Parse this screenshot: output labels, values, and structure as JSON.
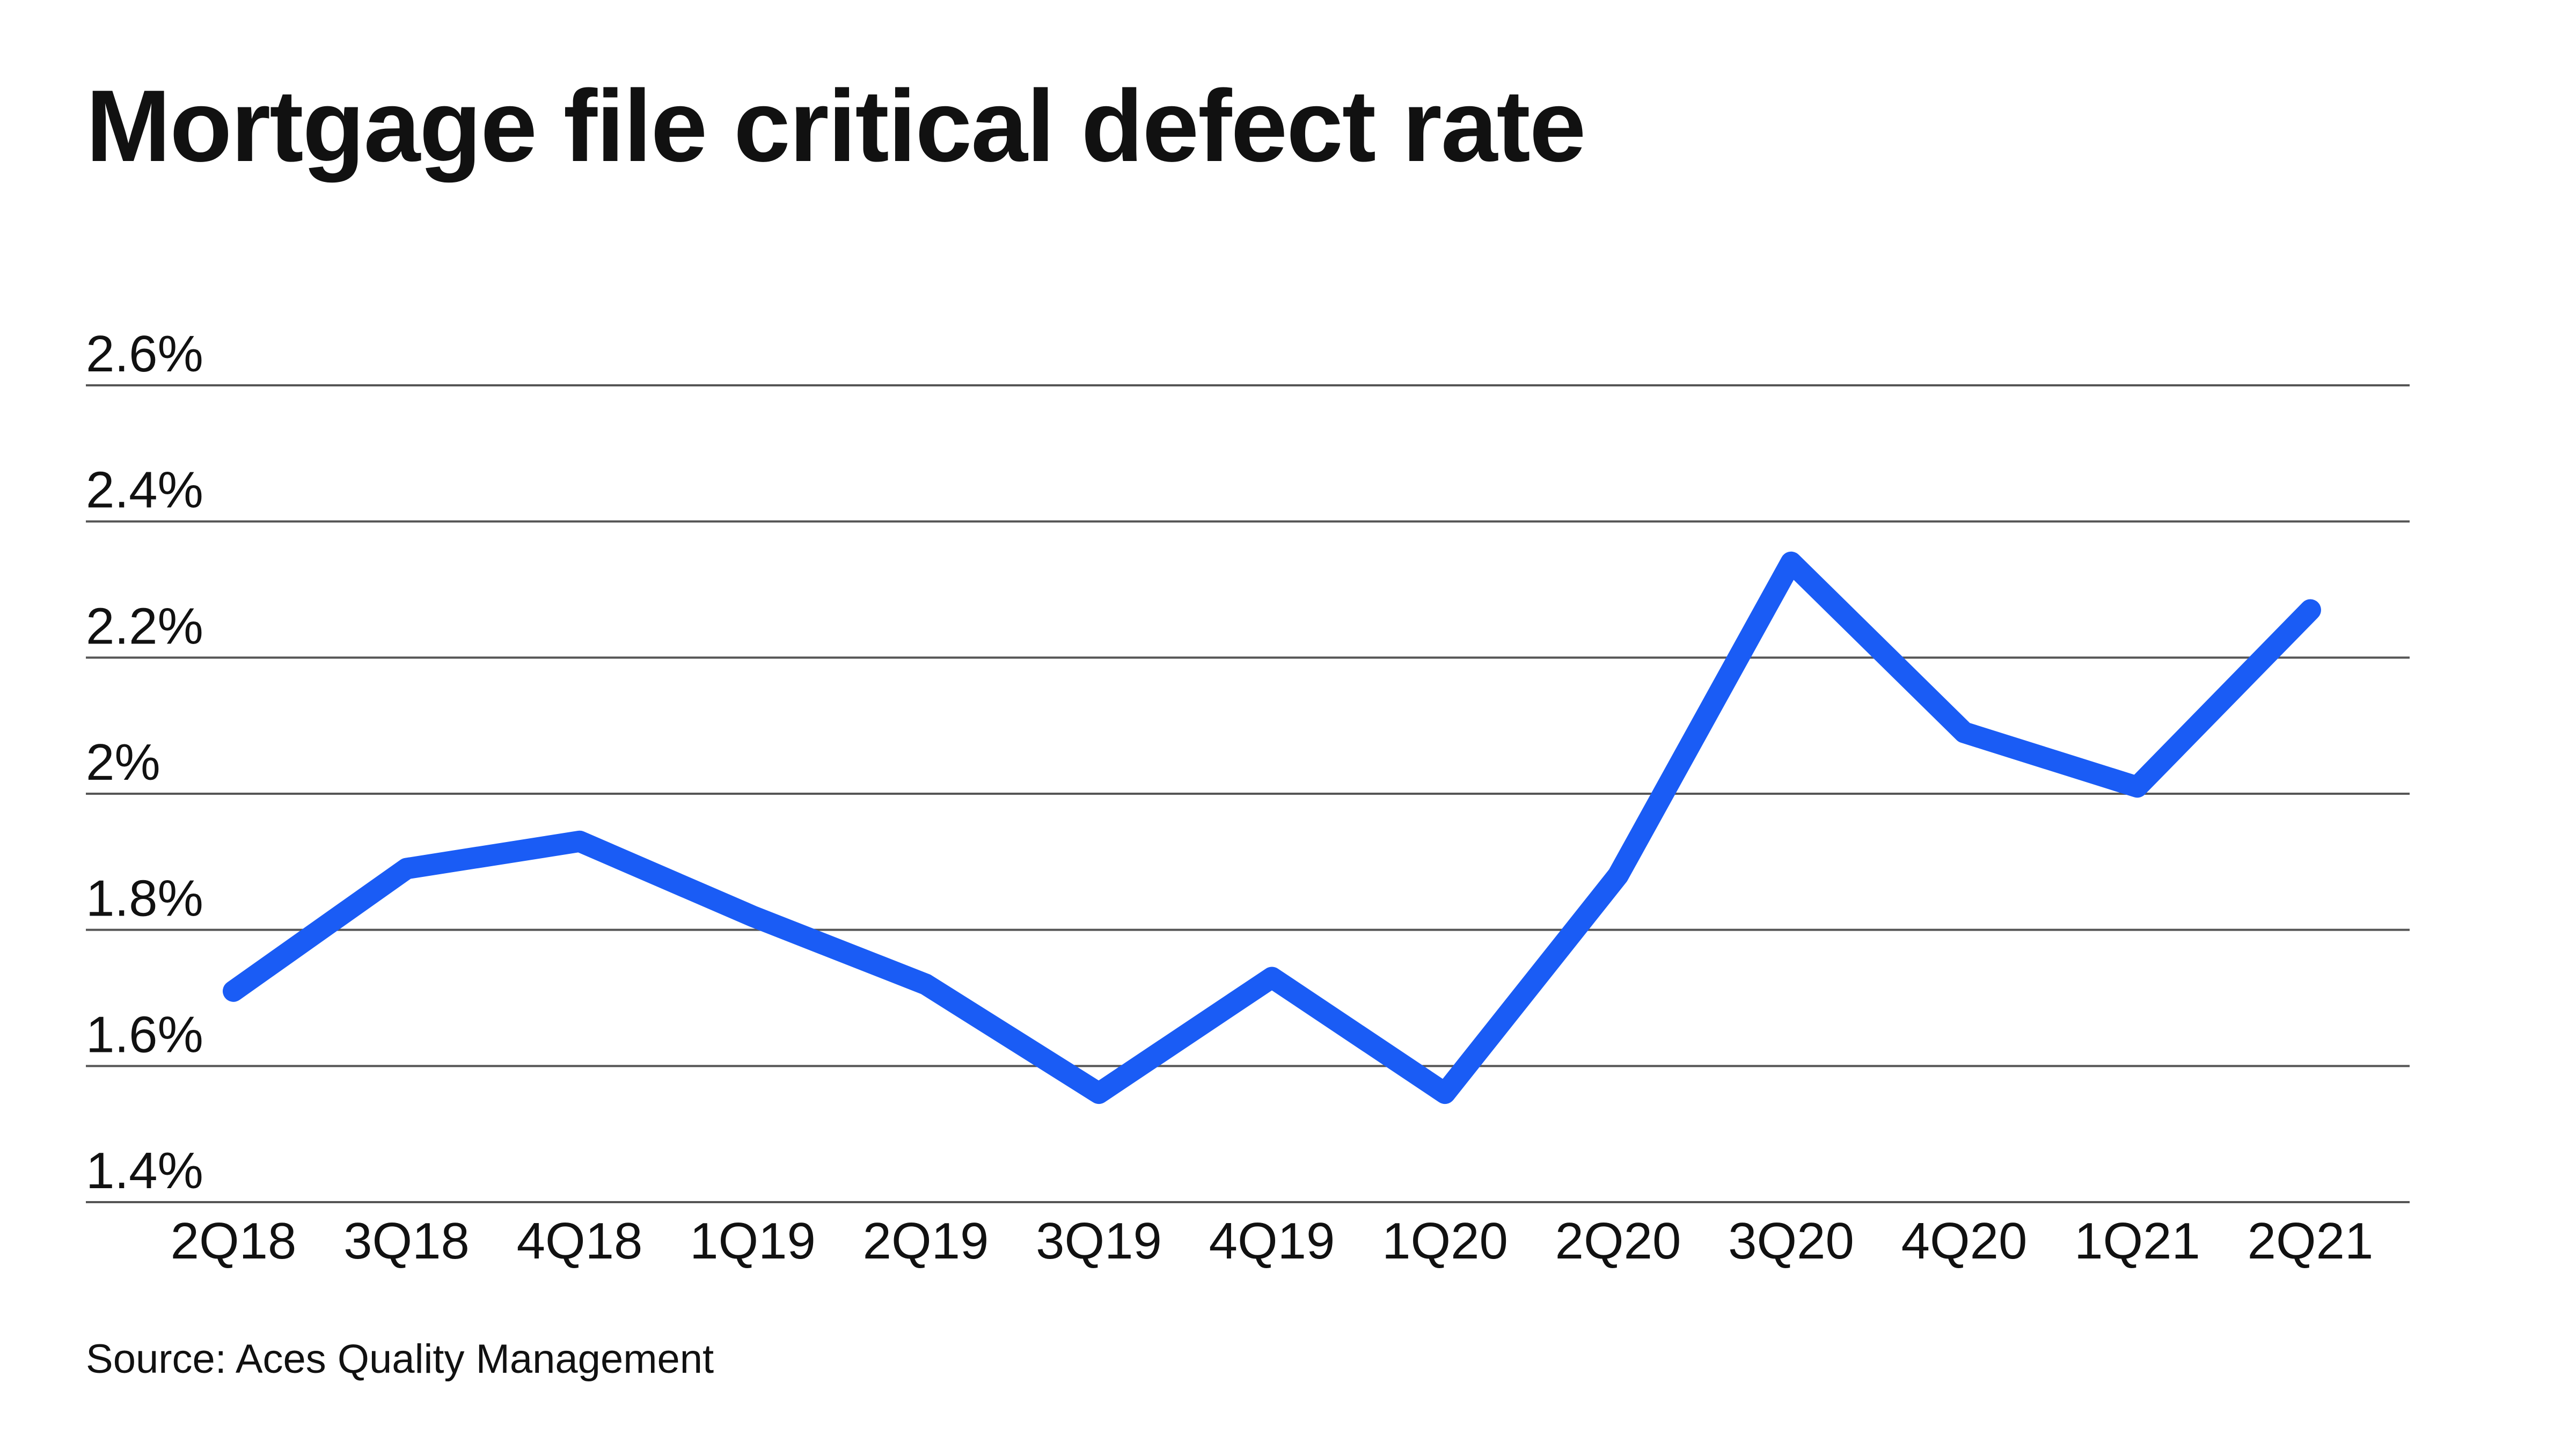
{
  "chart_data": {
    "type": "line",
    "title": "Mortgage file critical defect rate",
    "source": "Source: Aces Quality Management",
    "categories": [
      "2Q18",
      "3Q18",
      "4Q18",
      "1Q19",
      "2Q19",
      "3Q19",
      "4Q19",
      "1Q20",
      "2Q20",
      "3Q20",
      "4Q20",
      "1Q21",
      "2Q21"
    ],
    "series": [
      {
        "values": [
          1.71,
          1.89,
          1.93,
          1.82,
          1.72,
          1.56,
          1.73,
          1.56,
          1.88,
          2.34,
          2.09,
          2.01,
          2.27
        ],
        "color": "#1a5cf5"
      }
    ],
    "ylim": [
      1.4,
      2.6
    ],
    "yticks": [
      1.4,
      1.6,
      1.8,
      2.0,
      2.2,
      2.4,
      2.6
    ],
    "ytick_labels": [
      "1.4%",
      "1.6%",
      "1.8%",
      "2%",
      "2.2%",
      "2.4%",
      "2.6%"
    ],
    "xlabel": "",
    "ylabel": "",
    "grid": true,
    "legend": "none"
  }
}
